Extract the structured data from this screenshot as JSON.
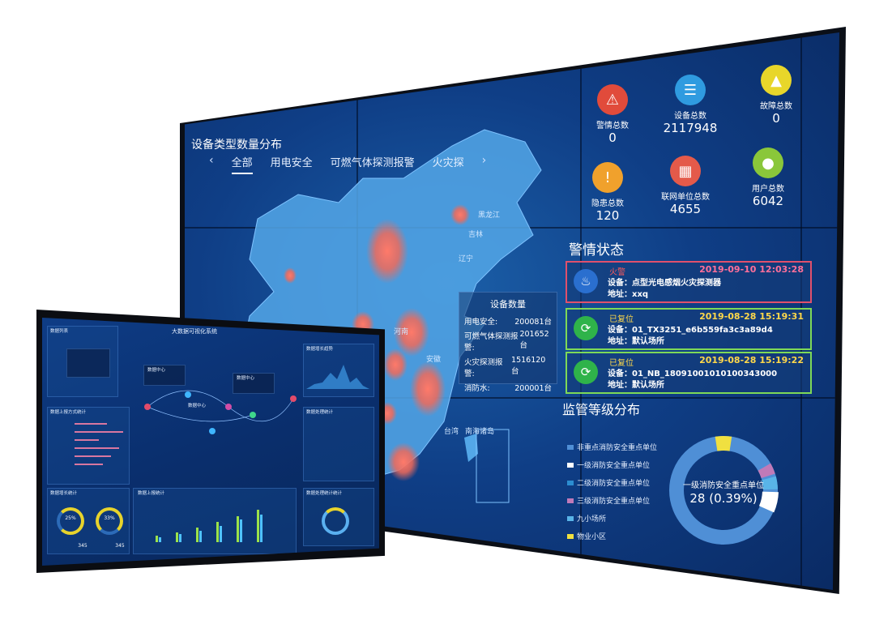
{
  "wall": {
    "map_panel": {
      "title": "设备类型数量分布",
      "tabs": [
        "全部",
        "用电安全",
        "可燃气体探测报警",
        "火灾探"
      ],
      "active_tab": "全部",
      "prev_icon": "chevron-left-icon",
      "next_icon": "chevron-right-icon",
      "places": [
        "黑龙江",
        "吉林",
        "辽宁",
        "河南",
        "安徽",
        "台湾",
        "南海诸岛"
      ],
      "legend": {
        "title": "设备数量",
        "rows": [
          {
            "name": "用电安全:",
            "value": "200081台"
          },
          {
            "name": "可燃气体探测报警:",
            "value": "201652台"
          },
          {
            "name": "火灾探测报警:",
            "value": "1516120台"
          },
          {
            "name": "消防水:",
            "value": "200001台"
          }
        ]
      }
    },
    "stats": [
      {
        "label": "警情总数",
        "value": "0",
        "icon": "alarm-icon",
        "color": "#e14b3b"
      },
      {
        "label": "设备总数",
        "value": "2117948",
        "icon": "database-icon",
        "color": "#2f9be0"
      },
      {
        "label": "故障总数",
        "value": "0",
        "icon": "warning-icon",
        "color": "#e8d62a"
      },
      {
        "label": "隐患总数",
        "value": "120",
        "icon": "hazard-icon",
        "color": "#f0a12c"
      },
      {
        "label": "联网单位总数",
        "value": "4655",
        "icon": "building-icon",
        "color": "#e45a4a"
      },
      {
        "label": "用户总数",
        "value": "6042",
        "icon": "user-icon",
        "color": "#8ac73a"
      }
    ],
    "alarm": {
      "title": "警情状态",
      "cards": [
        {
          "status": "火警",
          "time": "2019-09-10 12:03:28",
          "device": "设备：点型光电感烟火灾探测器",
          "address": "地址：xxq",
          "border": "#e0506c",
          "icon": "fire-icon",
          "icon_color": "#2a6fcf"
        },
        {
          "status": "已复位",
          "time": "2019-08-28 15:19:31",
          "device": "设备：01_TX3251_e6b559fa3c3a89d4",
          "address": "地址：默认场所",
          "border": "#7ed957",
          "icon": "reset-icon",
          "icon_color": "#2fb34a"
        },
        {
          "status": "已复位",
          "time": "2019-08-28 15:19:22",
          "device": "设备：01_NB_18091001010100343000",
          "address": "地址：默认场所",
          "border": "#7ed957",
          "icon": "reset-icon",
          "icon_color": "#2fb34a"
        }
      ]
    },
    "supervision": {
      "title": "监管等级分布",
      "legend": [
        {
          "name": "非重点消防安全重点单位",
          "color": "#4f8fd6"
        },
        {
          "name": "一级消防安全重点单位",
          "color": "#ffffff"
        },
        {
          "name": "二级消防安全重点单位",
          "color": "#2c8dd0"
        },
        {
          "name": "三级消防安全重点单位",
          "color": "#c07ab8"
        },
        {
          "name": "九小场所",
          "color": "#59b4e8"
        },
        {
          "name": "物业小区",
          "color": "#f0e040"
        }
      ],
      "center_label": "一级消防安全重点单位",
      "center_value": "28 (0.39%)"
    }
  },
  "monitor": {
    "title": "大数据可视化系统",
    "left_title": "数据列表",
    "sub_title": "数据上报方式统计",
    "rate_title": "数据增长统计",
    "ring_values": [
      "25%",
      "33%"
    ],
    "ring_foot": [
      "345",
      "345"
    ],
    "center_nodes": [
      "数据中心",
      "数据中心",
      "数据中心"
    ],
    "chart_title": "数据上报统计",
    "right_titles": [
      "数据增长趋势",
      "数据处理统计",
      "数据处理统计统计"
    ]
  }
}
